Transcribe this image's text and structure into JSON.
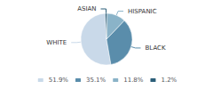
{
  "chart_data": {
    "type": "pie",
    "categories": [
      "WHITE",
      "BLACK",
      "HISPANIC",
      "ASIAN"
    ],
    "values": [
      51.9,
      35.1,
      11.8,
      1.2
    ],
    "value_labels": [
      "51.9%",
      "35.1%",
      "11.8%",
      "1.2%"
    ],
    "colors": [
      "#c9d9e9",
      "#5a8dab",
      "#8ab3c8",
      "#2b5e79"
    ],
    "legend": "bottom"
  }
}
